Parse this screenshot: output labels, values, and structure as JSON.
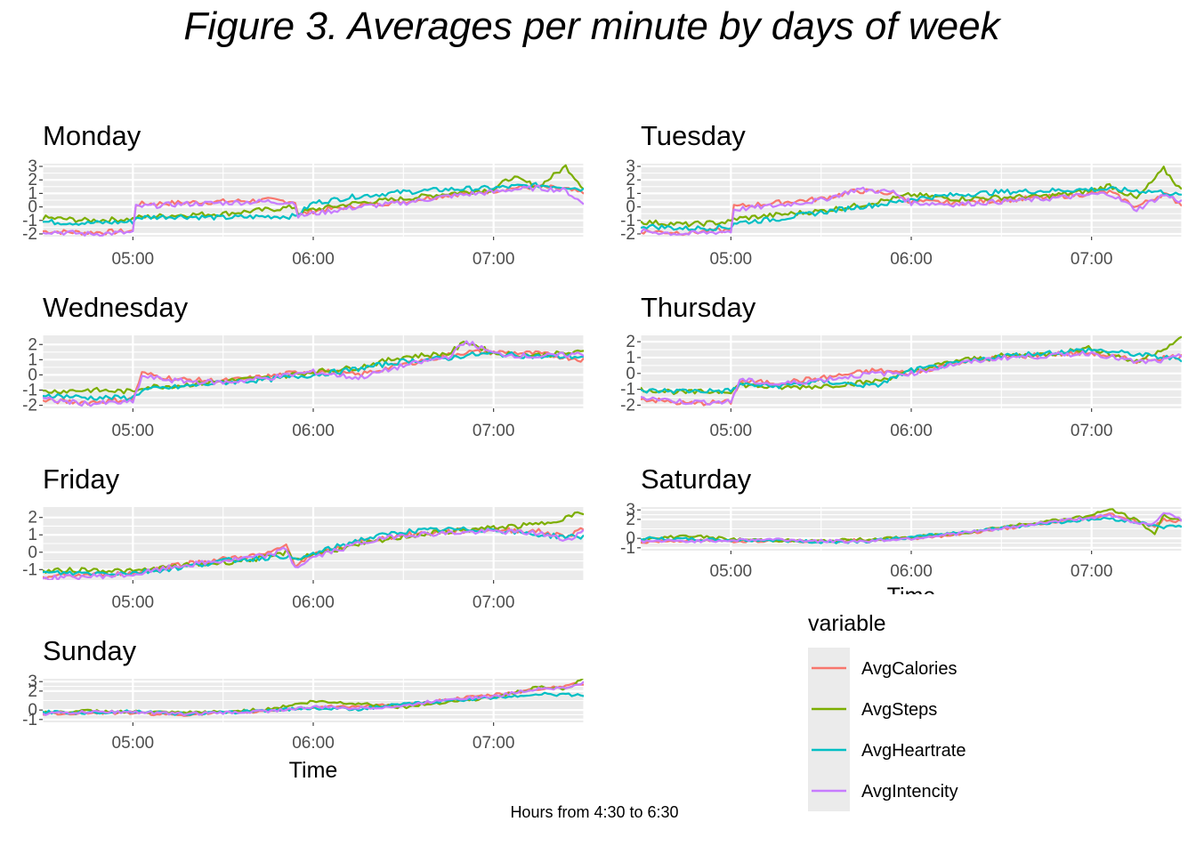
{
  "title": "Figure 3. Averages per minute by days of week",
  "caption": "Hours from 4:30 to 6:30",
  "colors": {
    "AvgCalories": "#F8766D",
    "AvgSteps": "#7CAE00",
    "AvgHeartrate": "#00BFC4",
    "AvgIntencity": "#C77CFF",
    "panel_bg": "#EBEBEB",
    "grid": "#FFFFFF"
  },
  "chart_data": {
    "type": "line",
    "x_unit": "time of day (decimal hours)",
    "x_range": [
      4.5,
      7.5
    ],
    "xticks": [
      {
        "value": 5,
        "label": "05:00"
      },
      {
        "value": 6,
        "label": "06:00"
      },
      {
        "value": 7,
        "label": "07:00"
      }
    ],
    "xlabel": "Time",
    "legend": {
      "title": "variable",
      "position": "right-bottom",
      "entries": [
        "AvgCalories",
        "AvgSteps",
        "AvgHeartrate",
        "AvgIntencity"
      ]
    },
    "panels": [
      {
        "title": "Monday",
        "ylim": [
          -2.2,
          3.2
        ],
        "yticks": [
          -2,
          -1,
          0,
          1,
          2,
          3
        ],
        "x_sample": [
          4.5,
          4.75,
          5.0,
          5.01,
          5.25,
          5.5,
          5.75,
          5.9,
          5.91,
          6.0,
          6.25,
          6.5,
          6.75,
          7.0,
          7.1,
          7.25,
          7.4,
          7.5
        ],
        "series": [
          {
            "name": "AvgCalories",
            "values": [
              -1.8,
              -1.9,
              -1.8,
              0.2,
              0.3,
              0.4,
              0.5,
              0.4,
              -0.6,
              -0.3,
              0.1,
              0.4,
              0.9,
              1.2,
              1.4,
              1.5,
              1.3,
              1.0
            ]
          },
          {
            "name": "AvgSteps",
            "values": [
              -0.8,
              -1.0,
              -0.9,
              -0.8,
              -0.6,
              -0.5,
              -0.2,
              0.0,
              -0.5,
              -0.2,
              0.3,
              0.6,
              1.0,
              1.3,
              2.2,
              1.5,
              3.0,
              1.4
            ]
          },
          {
            "name": "AvgHeartrate",
            "values": [
              -1.1,
              -1.2,
              -1.1,
              -0.8,
              -0.7,
              -0.8,
              -0.7,
              -0.7,
              -0.6,
              0.3,
              0.8,
              1.1,
              1.3,
              1.4,
              1.5,
              1.6,
              1.5,
              1.3
            ]
          },
          {
            "name": "AvgIntencity",
            "values": [
              -1.8,
              -2.0,
              -1.9,
              0.0,
              0.2,
              0.3,
              0.4,
              0.3,
              -0.7,
              -0.5,
              0.0,
              0.3,
              0.8,
              1.1,
              1.3,
              1.4,
              1.2,
              0.2
            ]
          }
        ]
      },
      {
        "title": "Tuesday",
        "ylim": [
          -2.2,
          3.2
        ],
        "yticks": [
          -2,
          -1,
          0,
          1,
          2,
          3
        ],
        "x_sample": [
          4.5,
          4.75,
          5.0,
          5.01,
          5.25,
          5.5,
          5.7,
          5.9,
          6.0,
          6.25,
          6.5,
          6.75,
          7.0,
          7.1,
          7.25,
          7.4,
          7.5
        ],
        "series": [
          {
            "name": "AvgCalories",
            "values": [
              -1.8,
              -1.9,
              -1.7,
              0.0,
              0.3,
              0.6,
              1.2,
              1.0,
              0.4,
              0.3,
              0.5,
              0.7,
              1.0,
              1.1,
              0.0,
              1.0,
              0.2
            ]
          },
          {
            "name": "AvgSteps",
            "values": [
              -1.1,
              -1.3,
              -1.1,
              -0.9,
              -0.6,
              -0.3,
              0.1,
              0.6,
              0.9,
              0.6,
              0.7,
              0.8,
              1.2,
              1.6,
              0.6,
              2.8,
              1.2
            ]
          },
          {
            "name": "AvgHeartrate",
            "values": [
              -1.4,
              -1.6,
              -1.5,
              -1.2,
              -0.9,
              -0.4,
              0.0,
              0.3,
              0.6,
              0.9,
              1.1,
              1.2,
              1.3,
              1.3,
              1.2,
              1.1,
              0.8
            ]
          },
          {
            "name": "AvgIntencity",
            "values": [
              -1.8,
              -2.0,
              -1.8,
              -0.2,
              0.1,
              0.5,
              1.3,
              1.1,
              0.3,
              0.2,
              0.4,
              0.6,
              0.9,
              1.0,
              -0.2,
              0.9,
              0.4
            ]
          }
        ]
      },
      {
        "title": "Wednesday",
        "ylim": [
          -2.2,
          2.6
        ],
        "yticks": [
          -2,
          -1,
          0,
          1,
          2
        ],
        "x_sample": [
          4.5,
          4.75,
          5.0,
          5.05,
          5.25,
          5.5,
          5.75,
          6.0,
          6.25,
          6.5,
          6.75,
          6.85,
          7.0,
          7.25,
          7.5
        ],
        "series": [
          {
            "name": "AvgCalories",
            "values": [
              -1.7,
              -1.8,
              -1.6,
              0.1,
              -0.3,
              -0.4,
              -0.1,
              0.3,
              0.0,
              0.7,
              1.3,
              1.5,
              1.5,
              1.4,
              1.0
            ]
          },
          {
            "name": "AvgSteps",
            "values": [
              -1.1,
              -1.0,
              -1.1,
              -0.8,
              -0.7,
              -0.4,
              -0.2,
              0.2,
              0.5,
              1.2,
              1.4,
              2.2,
              1.4,
              1.3,
              1.5
            ]
          },
          {
            "name": "AvgHeartrate",
            "values": [
              -1.3,
              -1.5,
              -1.5,
              -1.0,
              -0.8,
              -0.5,
              -0.3,
              0.0,
              0.4,
              0.9,
              1.1,
              1.3,
              1.4,
              1.2,
              1.2
            ]
          },
          {
            "name": "AvgIntencity",
            "values": [
              -1.6,
              -1.9,
              -1.8,
              -0.1,
              -0.4,
              -0.5,
              -0.2,
              0.2,
              -0.2,
              0.6,
              1.2,
              2.2,
              1.4,
              1.2,
              1.4
            ]
          }
        ]
      },
      {
        "title": "Thursday",
        "ylim": [
          -2.2,
          2.4
        ],
        "yticks": [
          -2,
          -1,
          0,
          1,
          2
        ],
        "x_sample": [
          4.5,
          4.75,
          5.0,
          5.05,
          5.25,
          5.5,
          5.8,
          6.0,
          6.25,
          6.5,
          6.75,
          7.0,
          7.25,
          7.4,
          7.5
        ],
        "series": [
          {
            "name": "AvgCalories",
            "values": [
              -1.6,
              -1.9,
              -1.8,
              -0.5,
              -0.6,
              -0.3,
              0.2,
              0.0,
              0.7,
              1.0,
              1.2,
              1.3,
              0.8,
              1.0,
              1.1
            ]
          },
          {
            "name": "AvgSteps",
            "values": [
              -1.0,
              -1.2,
              -1.1,
              -0.7,
              -0.9,
              -0.8,
              -0.5,
              0.1,
              0.8,
              1.1,
              1.2,
              1.6,
              0.7,
              1.6,
              2.2
            ]
          },
          {
            "name": "AvgHeartrate",
            "values": [
              -1.1,
              -1.1,
              -1.1,
              -0.7,
              -0.8,
              -0.5,
              -0.8,
              0.2,
              0.6,
              1.1,
              1.3,
              1.5,
              1.2,
              1.0,
              0.9
            ]
          },
          {
            "name": "AvgIntencity",
            "values": [
              -1.5,
              -1.8,
              -1.8,
              -0.4,
              -0.7,
              -0.4,
              0.0,
              0.0,
              0.6,
              1.0,
              1.1,
              1.3,
              0.7,
              0.8,
              1.1
            ]
          }
        ]
      },
      {
        "title": "Friday",
        "ylim": [
          -1.6,
          2.6
        ],
        "yticks": [
          -1,
          0,
          1,
          2
        ],
        "x_sample": [
          4.5,
          4.75,
          5.0,
          5.25,
          5.5,
          5.75,
          5.85,
          5.9,
          6.0,
          6.25,
          6.5,
          6.75,
          7.0,
          7.25,
          7.4,
          7.5
        ],
        "series": [
          {
            "name": "AvgCalories",
            "values": [
              -1.4,
              -1.3,
              -1.2,
              -0.7,
              -0.4,
              -0.1,
              0.4,
              -0.7,
              -0.2,
              0.6,
              1.0,
              1.2,
              1.3,
              1.2,
              0.9,
              1.4
            ]
          },
          {
            "name": "AvgSteps",
            "values": [
              -1.1,
              -1.0,
              -1.1,
              -0.8,
              -0.6,
              -0.3,
              0.0,
              -0.4,
              -0.1,
              0.4,
              0.9,
              1.2,
              1.4,
              1.6,
              2.0,
              2.3
            ]
          },
          {
            "name": "AvgHeartrate",
            "values": [
              -1.2,
              -1.2,
              -1.2,
              -0.9,
              -0.5,
              -0.3,
              -0.2,
              -0.5,
              -0.1,
              0.7,
              1.2,
              1.3,
              1.3,
              1.0,
              0.9,
              0.9
            ]
          },
          {
            "name": "AvgIntencity",
            "values": [
              -1.5,
              -1.4,
              -1.3,
              -0.8,
              -0.5,
              -0.2,
              0.2,
              -0.9,
              -0.3,
              0.5,
              1.0,
              1.1,
              1.2,
              1.1,
              0.7,
              1.2
            ]
          }
        ]
      },
      {
        "title": "Saturday",
        "ylim": [
          -1.3,
          3.3
        ],
        "yticks": [
          -1,
          0,
          2,
          3
        ],
        "x_sample": [
          4.5,
          4.75,
          5.0,
          5.25,
          5.5,
          5.75,
          6.0,
          6.25,
          6.5,
          6.75,
          7.0,
          7.1,
          7.25,
          7.35,
          7.4,
          7.5
        ],
        "series": [
          {
            "name": "AvgCalories",
            "values": [
              -0.4,
              -0.2,
              -0.3,
              -0.2,
              -0.3,
              -0.2,
              0.0,
              0.4,
              1.0,
              1.6,
              2.2,
              2.6,
              1.8,
              1.2,
              2.0,
              1.8
            ]
          },
          {
            "name": "AvgSteps",
            "values": [
              -0.2,
              0.3,
              -0.1,
              -0.2,
              -0.3,
              -0.1,
              0.1,
              0.5,
              1.2,
              1.8,
              2.4,
              3.1,
              1.9,
              0.5,
              2.4,
              1.9
            ]
          },
          {
            "name": "AvgHeartrate",
            "values": [
              0.0,
              -0.1,
              -0.2,
              -0.2,
              -0.4,
              -0.3,
              0.1,
              0.6,
              1.1,
              1.6,
              2.0,
              2.1,
              1.7,
              1.4,
              1.2,
              1.3
            ]
          },
          {
            "name": "AvgIntencity",
            "values": [
              -0.3,
              -0.3,
              -0.2,
              -0.1,
              -0.3,
              -0.3,
              0.0,
              0.5,
              1.0,
              1.7,
              2.2,
              2.4,
              1.6,
              1.6,
              2.8,
              1.9
            ]
          }
        ]
      },
      {
        "title": "Sunday",
        "ylim": [
          -1.3,
          3.3
        ],
        "yticks": [
          -1,
          0,
          2,
          3
        ],
        "x_sample": [
          4.5,
          4.75,
          5.0,
          5.25,
          5.5,
          5.75,
          6.0,
          6.25,
          6.5,
          6.75,
          7.0,
          7.25,
          7.4,
          7.5
        ],
        "series": [
          {
            "name": "AvgCalories",
            "values": [
              -0.4,
              -0.3,
              -0.3,
              -0.5,
              -0.3,
              -0.1,
              0.3,
              0.4,
              0.5,
              1.1,
              1.6,
              2.2,
              2.6,
              2.8
            ]
          },
          {
            "name": "AvgSteps",
            "values": [
              -0.3,
              -0.1,
              -0.2,
              -0.3,
              -0.2,
              0.1,
              0.9,
              0.7,
              0.3,
              0.9,
              1.3,
              2.4,
              2.2,
              3.3
            ]
          },
          {
            "name": "AvgHeartrate",
            "values": [
              -0.2,
              -0.3,
              -0.1,
              -0.4,
              -0.3,
              0.0,
              0.2,
              0.1,
              0.6,
              1.0,
              1.3,
              1.7,
              1.6,
              1.6
            ]
          },
          {
            "name": "AvgIntencity",
            "values": [
              -0.4,
              -0.2,
              -0.2,
              -0.4,
              -0.3,
              -0.1,
              0.3,
              0.2,
              0.4,
              1.2,
              1.4,
              2.3,
              2.3,
              2.9
            ]
          }
        ]
      }
    ]
  }
}
